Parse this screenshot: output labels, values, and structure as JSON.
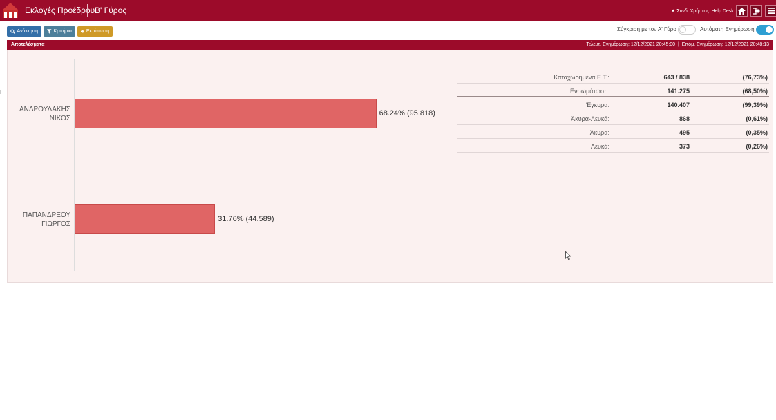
{
  "header": {
    "app_title": "Εκλογές Προέδρου",
    "round_title": "Β' Γύρος",
    "user_info": "Συνδ. Χρήστης: Help Desk"
  },
  "toolbar": {
    "refresh_label": "Ανάκτηση",
    "filters_label": "Κριτήρια",
    "print_label": "Εκτύπωση",
    "compare_label": "Σύγκριση με τον Α' Γύρο",
    "compare_on": false,
    "auto_update_label": "Αυτόματη Ενημέρωση",
    "auto_update_on": true
  },
  "results": {
    "title": "Αποτελέσματα",
    "last_update": "Τελευτ. Ενημέρωση: 12/12/2021 20:45:00",
    "next_update": "Επόμ. Ενημέρωση: 12/12/2021 20:48:13",
    "separator": "|"
  },
  "chart_data": {
    "type": "bar",
    "orientation": "horizontal",
    "categories": [
      "ΑΝΔΡΟΥΛΑΚΗΣ ΝΙΚΟΣ",
      "ΠΑΠΑΝΔΡΕΟΥ ΓΙΩΡΓΟΣ"
    ],
    "category_lines": [
      [
        "ΑΝΔΡΟΥΛΑΚΗΣ",
        "ΝΙΚΟΣ"
      ],
      [
        "ΠΑΠΑΝΔΡΕΟΥ",
        "ΓΙΩΡΓΟΣ"
      ]
    ],
    "values": [
      68.24,
      31.76
    ],
    "votes": [
      95818,
      44589
    ],
    "data_labels": [
      "68.24% (95.818)",
      "31.76% (44.589)"
    ],
    "bar_color": "#e06565"
  },
  "stats": [
    {
      "label": "Καταχωρημένα Ε.Τ.:",
      "value": "643 / 838",
      "percent": "(76,73%)"
    },
    {
      "label": "Ενσωμάτωση:",
      "value": "141.275",
      "percent": "(68,50%)"
    },
    {
      "label": "Έγκυρα:",
      "value": "140.407",
      "percent": "(99,39%)"
    },
    {
      "label": "Άκυρα-Λευκά:",
      "value": "868",
      "percent": "(0,61%)"
    },
    {
      "label": "Άκυρα:",
      "value": "495",
      "percent": "(0,35%)"
    },
    {
      "label": "Λευκά:",
      "value": "373",
      "percent": "(0,26%)"
    }
  ],
  "colors": {
    "brand": "#9c0b2a",
    "btn_refresh": "#336fa8",
    "btn_filters": "#4d7f9a",
    "btn_print": "#cf9a27",
    "toggle_on": "#2e9fd3"
  },
  "icons": {
    "logo": "ote-logo",
    "refresh": "search-icon",
    "filters": "filter-icon",
    "print": "print-icon",
    "user": "user-icon",
    "home": "home-icon",
    "logout": "logout-icon",
    "menu": "menu-icon"
  }
}
